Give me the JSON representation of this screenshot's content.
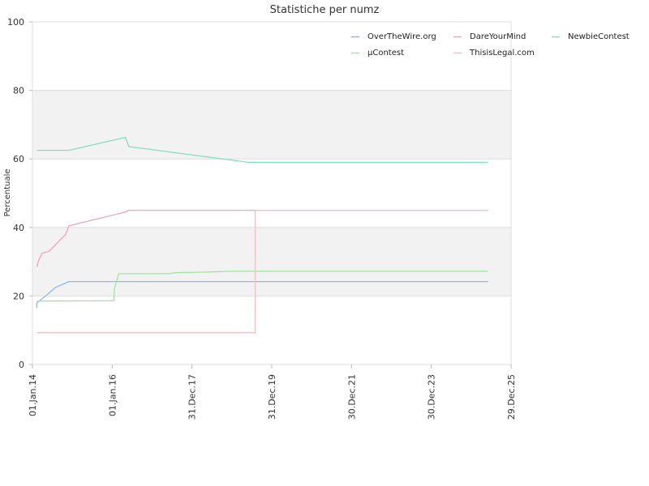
{
  "chart_data": {
    "type": "line",
    "title": "Statistiche per numz",
    "xlabel": "",
    "ylabel": "Percentuale",
    "ylim": [
      0,
      100
    ],
    "xlim": [
      "2014-01-01",
      "2025-12-29"
    ],
    "y_ticks": [
      0,
      20,
      40,
      60,
      80,
      100
    ],
    "y_tick_labels": [
      "0",
      "20",
      "40",
      "60",
      "80",
      "100"
    ],
    "x_ticks": [
      "2014-01-01",
      "2016-01-01",
      "2017-12-31",
      "2019-12-31",
      "2021-12-30",
      "2023-12-30",
      "2025-12-29"
    ],
    "x_tick_labels": [
      "01.Jan.14",
      "01.Jan.16",
      "31.Dec.17",
      "31.Dec.19",
      "30.Dec.21",
      "30.Dec.23",
      "29.Dec.25"
    ],
    "bands": [
      [
        20,
        40
      ],
      [
        60,
        80
      ]
    ],
    "band_color": "#f2f2f2",
    "grid_color": "#dddddd",
    "legend_position": "top-right",
    "series": [
      {
        "name": "OverTheWire.org",
        "color": "#8fb8e8",
        "points": [
          [
            "2014-02-10",
            16.5
          ],
          [
            "2014-02-10",
            18
          ],
          [
            "2014-05-01",
            20
          ],
          [
            "2014-08-01",
            22.5
          ],
          [
            "2014-12-01",
            24.2
          ],
          [
            "2025-06-01",
            24.2
          ]
        ]
      },
      {
        "name": "µContest",
        "color": "#9be89b",
        "points": [
          [
            "2014-02-10",
            18.5
          ],
          [
            "2016-01-15",
            18.6
          ],
          [
            "2016-01-20",
            22
          ],
          [
            "2016-03-01",
            26.5
          ],
          [
            "2017-06-01",
            26.5
          ],
          [
            "2017-08-01",
            26.8
          ],
          [
            "2018-06-01",
            27
          ],
          [
            "2019-01-01",
            27.2
          ],
          [
            "2025-06-01",
            27.2
          ]
        ]
      },
      {
        "name": "DareYourMind",
        "color": "#f0a0c0",
        "points": [
          [
            "2014-02-10",
            28.5
          ],
          [
            "2014-03-01",
            30.5
          ],
          [
            "2014-04-01",
            32.5
          ],
          [
            "2014-06-01",
            33
          ],
          [
            "2014-11-01",
            38
          ],
          [
            "2014-12-01",
            40.5
          ],
          [
            "2016-05-01",
            44.5
          ],
          [
            "2016-06-01",
            45
          ],
          [
            "2025-06-01",
            45
          ]
        ]
      },
      {
        "name": "ThisisLegal.com",
        "color": "#f8c0c0",
        "points": [
          [
            "2014-02-10",
            9.3
          ],
          [
            "2019-08-01",
            9.3
          ],
          [
            "2019-08-01",
            45
          ],
          [
            "2025-06-01",
            45
          ]
        ]
      },
      {
        "name": "NewbieContest",
        "color": "#80e0c0",
        "points": [
          [
            "2014-02-10",
            62.5
          ],
          [
            "2014-12-01",
            62.5
          ],
          [
            "2016-05-01",
            66.3
          ],
          [
            "2016-06-01",
            63.6
          ],
          [
            "2019-06-01",
            59
          ],
          [
            "2025-06-01",
            59
          ]
        ]
      }
    ],
    "legend": [
      {
        "series": "OverTheWire.org",
        "row": 0,
        "col": 0
      },
      {
        "series": "DareYourMind",
        "row": 0,
        "col": 1
      },
      {
        "series": "NewbieContest",
        "row": 0,
        "col": 2
      },
      {
        "series": "µContest",
        "row": 1,
        "col": 0
      },
      {
        "series": "ThisisLegal.com",
        "row": 1,
        "col": 1
      }
    ]
  }
}
